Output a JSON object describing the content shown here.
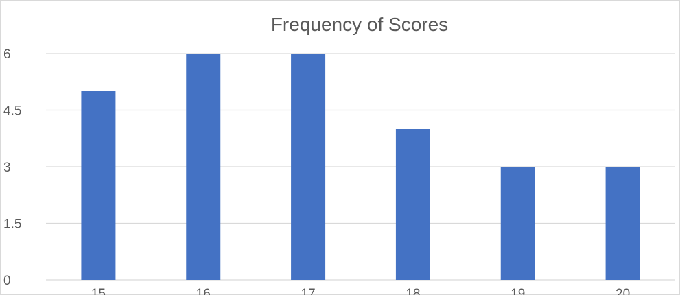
{
  "chart_data": {
    "type": "bar",
    "title": "Frequency of Scores",
    "xlabel": "",
    "ylabel": "",
    "categories": [
      "15",
      "16",
      "17",
      "18",
      "19",
      "20"
    ],
    "values": [
      5,
      6,
      6,
      4,
      3,
      3
    ],
    "ylim": [
      0,
      6
    ],
    "yticks": [
      "0",
      "1.5",
      "3",
      "4.5",
      "6"
    ],
    "ytick_values": [
      0,
      1.5,
      3,
      4.5,
      6
    ],
    "grid": true,
    "legend": "none",
    "bar_color": "#4472c4"
  }
}
